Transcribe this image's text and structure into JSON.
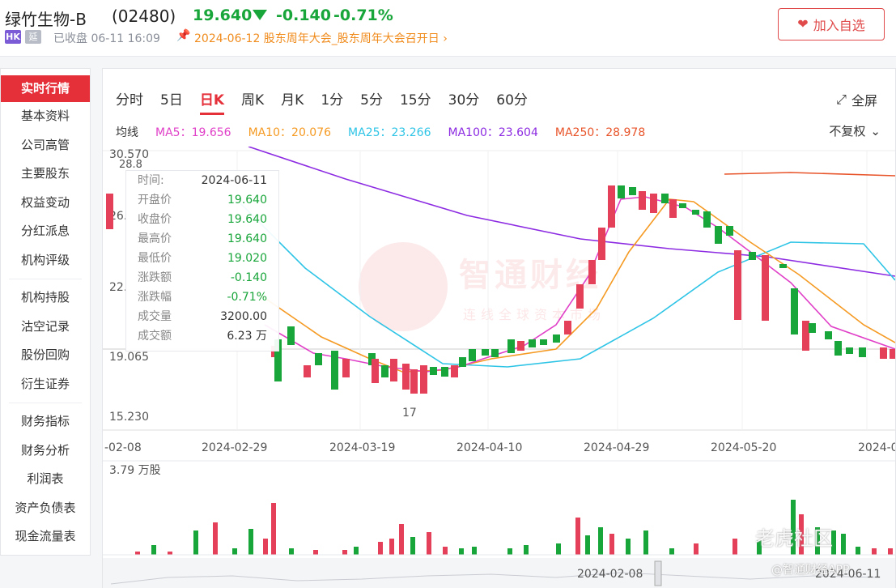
{
  "header": {
    "stock_name": "绿竹生物-B",
    "stock_code": "(02480)",
    "price": "19.640",
    "change": "-0.140",
    "change_pct": "-0.71%",
    "market_badge": "HK",
    "delay_badge": "延",
    "status": "已收盘 06-11 16:09",
    "event": "2024-06-12 股东周年大会_股东周年大会召开日",
    "watch_label": "加入自选",
    "down_color": "#18a53a",
    "up_color": "#e5303a"
  },
  "sidebar": {
    "items": [
      {
        "label": "实时行情",
        "active": true
      },
      {
        "label": "基本资料"
      },
      {
        "label": "公司高管"
      },
      {
        "label": "主要股东"
      },
      {
        "label": "权益变动"
      },
      {
        "label": "分红派息"
      },
      {
        "label": "机构评级"
      },
      {
        "label": "机构持股"
      },
      {
        "label": "沽空记录"
      },
      {
        "label": "股份回购"
      },
      {
        "label": "衍生证券"
      },
      {
        "label": "财务指标"
      },
      {
        "label": "财务分析"
      },
      {
        "label": "利润表"
      },
      {
        "label": "资产负债表"
      },
      {
        "label": "现金流量表"
      }
    ]
  },
  "tabs": [
    "分时",
    "5日",
    "日K",
    "周K",
    "月K",
    "1分",
    "5分",
    "15分",
    "30分",
    "60分"
  ],
  "active_tab": "日K",
  "fullscreen_label": "全屏",
  "ma": {
    "label": "均线",
    "items": [
      {
        "text": "MA5：19.656",
        "color": "#e040c8"
      },
      {
        "text": "MA10：20.076",
        "color": "#f59a23"
      },
      {
        "text": "MA25：23.266",
        "color": "#2ec4e6"
      },
      {
        "text": "MA100：23.604",
        "color": "#8c2be2"
      },
      {
        "text": "MA250：28.978",
        "color": "#e8542a"
      }
    ]
  },
  "adjust_label": "不复权",
  "tooltip": {
    "rows": [
      {
        "k": "时间:",
        "v": "2024-06-11",
        "black": true
      },
      {
        "k": "开盘价",
        "v": "19.640"
      },
      {
        "k": "收盘价",
        "v": "19.640"
      },
      {
        "k": "最高价",
        "v": "19.640"
      },
      {
        "k": "最低价",
        "v": "19.020"
      },
      {
        "k": "涨跌额",
        "v": "-0.140"
      },
      {
        "k": "涨跌幅",
        "v": "-0.71%"
      },
      {
        "k": "成交量",
        "v": "3200.00",
        "black": true
      },
      {
        "k": "成交额",
        "v": "6.23 万",
        "black": true
      }
    ]
  },
  "chart_data": {
    "type": "candlestick",
    "y_ticks": [
      "30.570",
      "26.",
      "22.",
      "19.065",
      "15.230"
    ],
    "top_left_label": "28.8",
    "low_marker": "17",
    "x_ticks": [
      "-02-08",
      "2024-02-29",
      "2024-03-19",
      "2024-04-10",
      "2024-04-29",
      "2024-05-20",
      "2024-0"
    ],
    "volume_label": "3.79 万股",
    "navigator_dates": [
      "2024-02-08",
      "2024-06-11"
    ]
  },
  "watermarks": {
    "brand": "智通财经",
    "brand_sub": "连线全球资本市场",
    "tiger": "老虎社区",
    "zt": "@智通财经APP"
  }
}
